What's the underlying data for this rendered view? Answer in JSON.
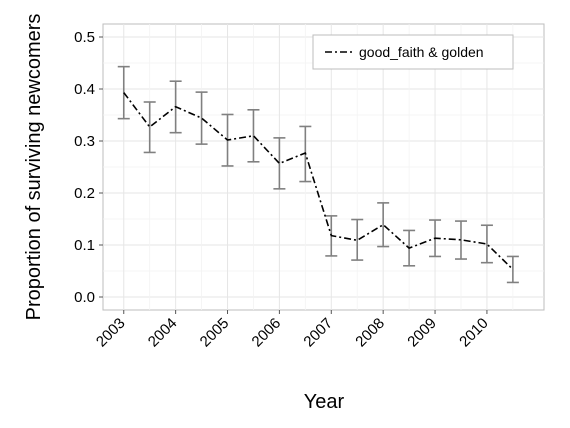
{
  "chart_data": {
    "type": "line",
    "title": "",
    "xlabel": "Year",
    "ylabel": "Proportion of surviving newcomers",
    "x_ticks": [
      "2003",
      "2004",
      "2005",
      "2006",
      "2007",
      "2008",
      "2009",
      "2010"
    ],
    "y_ticks": [
      "0.0",
      "0.1",
      "0.2",
      "0.3",
      "0.4",
      "0.5"
    ],
    "xlim": [
      2002.6,
      2011.1
    ],
    "ylim": [
      -0.025,
      0.525
    ],
    "grid": true,
    "legend_position": "top-right",
    "series": [
      {
        "name": "good_faith & golden",
        "line_style": "dash-dot",
        "color": "#000000",
        "error_bar_color": "#808080",
        "x": [
          2003.0,
          2003.5,
          2004.0,
          2004.5,
          2005.0,
          2005.5,
          2006.0,
          2006.5,
          2007.0,
          2007.5,
          2008.0,
          2008.5,
          2009.0,
          2009.5,
          2010.0,
          2010.5
        ],
        "y": [
          0.393,
          0.327,
          0.366,
          0.344,
          0.302,
          0.31,
          0.257,
          0.277,
          0.118,
          0.109,
          0.139,
          0.094,
          0.113,
          0.11,
          0.102,
          0.053
        ],
        "lower": [
          0.343,
          0.278,
          0.316,
          0.294,
          0.252,
          0.26,
          0.208,
          0.222,
          0.079,
          0.071,
          0.097,
          0.06,
          0.078,
          0.073,
          0.066,
          0.028
        ],
        "upper": [
          0.443,
          0.375,
          0.415,
          0.394,
          0.351,
          0.36,
          0.306,
          0.328,
          0.156,
          0.149,
          0.181,
          0.128,
          0.148,
          0.146,
          0.138,
          0.078
        ]
      }
    ]
  }
}
